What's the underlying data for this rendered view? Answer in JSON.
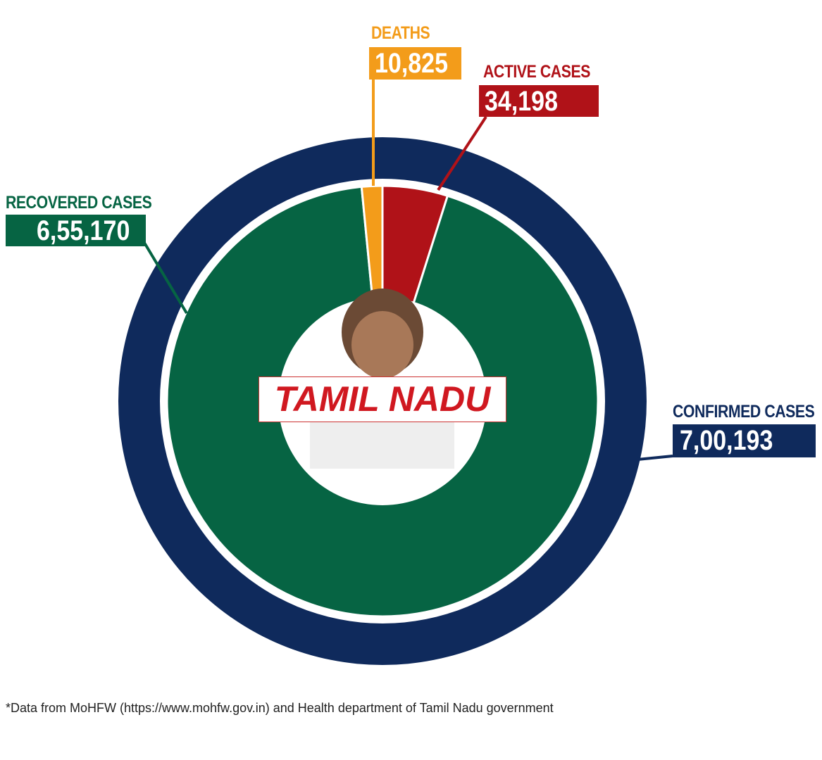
{
  "chart_data": {
    "type": "pie",
    "title": "TAMIL NADU",
    "outer_ring": {
      "label": "CONFIRMED CASES",
      "value": 700193,
      "display": "7,00,193",
      "color": "#0f2a5c"
    },
    "slices": [
      {
        "label": "ACTIVE CASES",
        "value": 34198,
        "display": "34,198",
        "color": "#b01218"
      },
      {
        "label": "RECOVERED CASES",
        "value": 655170,
        "display": "6,55,170",
        "color": "#066443"
      },
      {
        "label": "DEATHS",
        "value": 10825,
        "display": "10,825",
        "color": "#f39c1a"
      }
    ]
  },
  "footnote": "*Data from MoHFW (https://www.mohfw.gov.in) and Health department of Tamil Nadu government"
}
